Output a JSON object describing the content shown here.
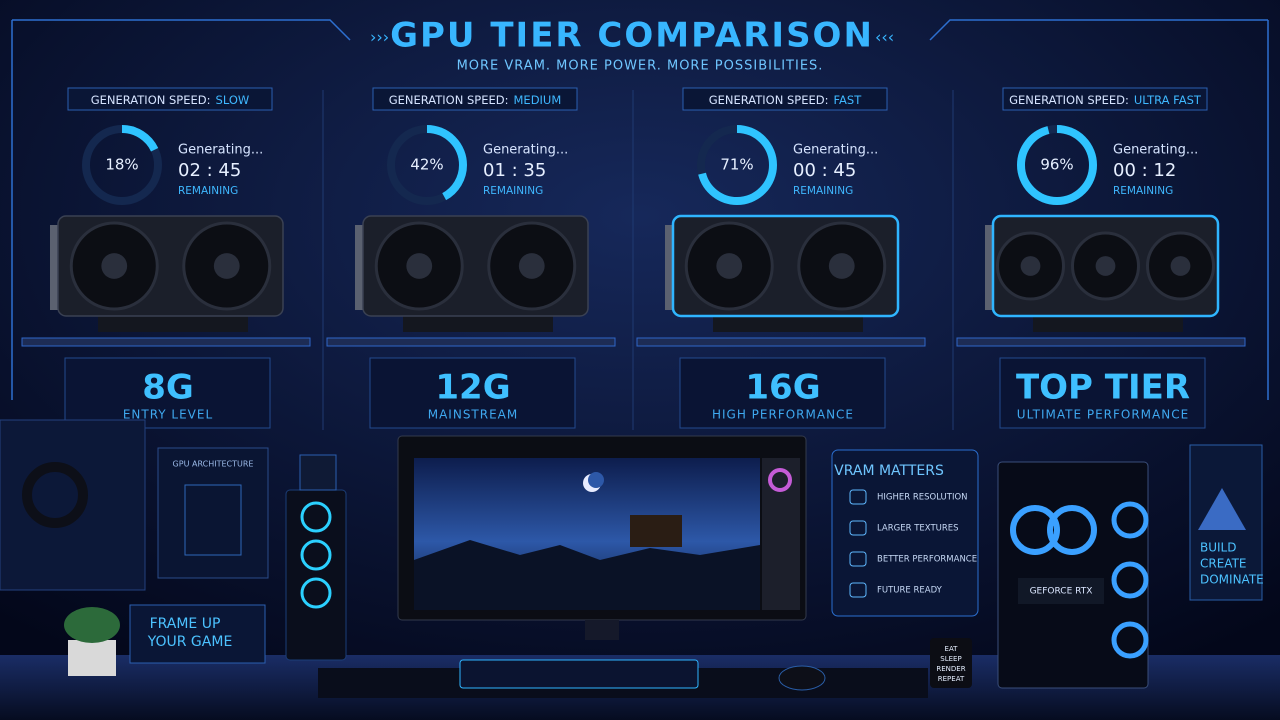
{
  "header": {
    "title": "GPU TIER COMPARISON",
    "subtitle": "MORE VRAM. MORE POWER. MORE POSSIBILITIES."
  },
  "tiers": [
    {
      "speed_label": "GENERATION SPEED:",
      "speed": "SLOW",
      "progress": {
        "value": 18,
        "label": "18%"
      },
      "status": "Generating...",
      "time": "02 : 45",
      "remaining": "REMAINING",
      "tier": "8G",
      "description": "ENTRY LEVEL"
    },
    {
      "speed_label": "GENERATION SPEED:",
      "speed": "MEDIUM",
      "progress": {
        "value": 42,
        "label": "42%"
      },
      "status": "Generating...",
      "time": "01 : 35",
      "remaining": "REMAINING",
      "tier": "12G",
      "description": "MAINSTREAM"
    },
    {
      "speed_label": "GENERATION SPEED:",
      "speed": "FAST",
      "progress": {
        "value": 71,
        "label": "71%"
      },
      "status": "Generating...",
      "time": "00 : 45",
      "remaining": "REMAINING",
      "tier": "16G",
      "description": "HIGH PERFORMANCE"
    },
    {
      "speed_label": "GENERATION SPEED:",
      "speed": "ULTRA FAST",
      "progress": {
        "value": 96,
        "label": "96%"
      },
      "status": "Generating...",
      "time": "00 : 12",
      "remaining": "REMAINING",
      "tier": "TOP TIER",
      "description": "ULTIMATE PERFORMANCE"
    }
  ],
  "desk": {
    "architecture_poster": "GPU ARCHITECTURE",
    "frame_sign": [
      "FRAME UP",
      "YOUR GAME"
    ],
    "vram_panel": {
      "title": "VRAM MATTERS",
      "items": [
        "HIGHER RESOLUTION",
        "LARGER TEXTURES",
        "BETTER PERFORMANCE",
        "FUTURE READY"
      ]
    },
    "pc_label": "GEFORCE RTX",
    "poster": [
      "BUILD",
      "CREATE",
      "DOMINATE"
    ],
    "mug": [
      "EAT",
      "SLEEP",
      "RENDER",
      "REPEAT"
    ]
  }
}
